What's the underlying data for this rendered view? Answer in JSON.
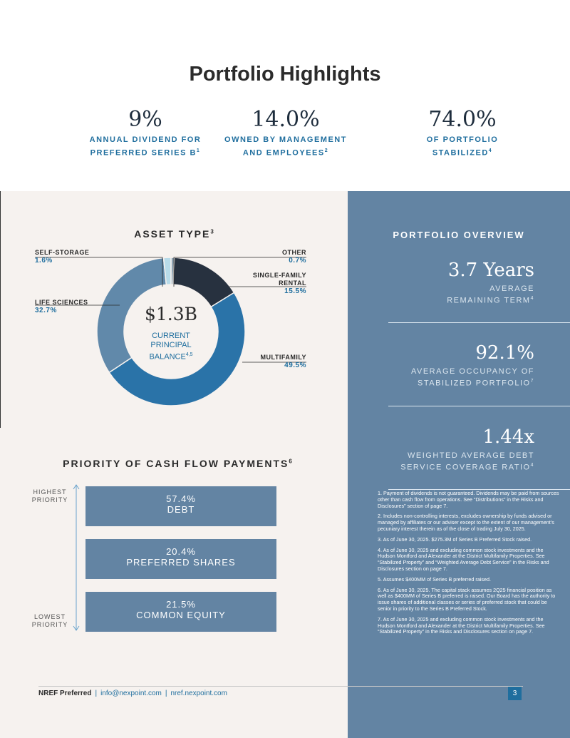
{
  "title": "Portfolio Highlights",
  "highlights": [
    {
      "value": "9%",
      "line1": "ANNUAL DIVIDEND FOR",
      "line2": "PREFERRED SERIES B",
      "sup": "1"
    },
    {
      "value": "14.0%",
      "line1": "OWNED BY MANAGEMENT",
      "line2": "AND EMPLOYEES",
      "sup": "2"
    },
    {
      "value": "74.0%",
      "line1": "OF PORTFOLIO",
      "line2": "STABILIZED",
      "sup": "4"
    }
  ],
  "asset_type": {
    "title": "ASSET TYPE",
    "sup": "3",
    "center_value": "$1.3B",
    "center_line1": "CURRENT",
    "center_line2": "PRINCIPAL",
    "center_line3": "BALANCE",
    "center_sup": "4,5",
    "colors": {
      "multifamily": "#2a73a8",
      "life_sciences": "#6189aa",
      "self_storage": "#b8dbe9",
      "other": "#8fa3b2",
      "single_family": "#27313f"
    }
  },
  "chart_data": {
    "type": "pie",
    "title": "ASSET TYPE",
    "slices": [
      {
        "name": "OTHER",
        "label_line2": "",
        "percent_label": "0.7%",
        "value": 0.7
      },
      {
        "name": "SINGLE-FAMILY",
        "label_line2": "RENTAL",
        "percent_label": "15.5%",
        "value": 15.5
      },
      {
        "name": "MULTIFAMILY",
        "label_line2": "",
        "percent_label": "49.5%",
        "value": 49.5
      },
      {
        "name": "LIFE SCIENCES",
        "label_line2": "",
        "percent_label": "32.7%",
        "value": 32.7
      },
      {
        "name": "SELF-STORAGE",
        "label_line2": "",
        "percent_label": "1.6%",
        "value": 1.6
      }
    ]
  },
  "priority": {
    "title": "PRIORITY OF CASH FLOW PAYMENTS",
    "sup": "6",
    "highest_line1": "HIGHEST",
    "highest_line2": "PRIORITY",
    "lowest_line1": "LOWEST",
    "lowest_line2": "PRIORITY",
    "items": [
      {
        "value": "57.4%",
        "label": "DEBT"
      },
      {
        "value": "20.4%",
        "label": "PREFERRED SHARES"
      },
      {
        "value": "21.5%",
        "label": "COMMON EQUITY"
      }
    ]
  },
  "overview": {
    "title": "PORTFOLIO OVERVIEW",
    "metrics": [
      {
        "value": "3.7 Years",
        "line1": "AVERAGE",
        "line2": "REMAINING TERM",
        "sup": "4"
      },
      {
        "value": "92.1%",
        "line1": "AVERAGE OCCUPANCY OF",
        "line2": "STABILIZED PORTFOLIO",
        "sup": "7"
      },
      {
        "value": "1.44x",
        "line1": "WEIGHTED AVERAGE DEBT",
        "line2": "SERVICE COVERAGE RATIO",
        "sup": "4"
      }
    ]
  },
  "notes": [
    "1. Payment of dividends is not guaranteed. Dividends may be paid from sources other than cash flow from operations. See “Distributions” in the Risks and Disclosures” section of page 7.",
    "2. Includes non-controlling interests, excludes ownership by funds advised or managed by affiliates or our adviser except to the extent of our management’s pecuniary interest therein as of the close of trading July 30, 2025.",
    "3. As of June 30, 2025. $275.3M of Series B Preferred Stock raised.",
    "4. As of June 30, 2025 and excluding common stock investments and the Hudson Montford and Alexander at the District Multifamily Properties. See “Stabilized Property” and “Weighted Average Debt Service” in the Risks and Disclosures section on page 7.",
    "5. Assumes $400MM of Series B preferred raised.",
    "6. As of June 30, 2025. The capital stack assumes 2Q25 financial position as well as $400MM of Series B preferred is raised. Our Board has the authority to issue shares of additional classes or series of preferred stock that could be senior in priority to the Series B Preferred Stock.",
    "7. As of June 30, 2025 and excluding common stock investments and the Hudson Montford and Alexander at the District Multifamily Properties. See “Stabilized Property” in the Risks and Disclosures section on page 7."
  ],
  "footer": {
    "brand": "NREF Preferred",
    "sep": "|",
    "email": "info@nexpoint.com",
    "website": "nref.nexpoint.com",
    "page": "3"
  }
}
